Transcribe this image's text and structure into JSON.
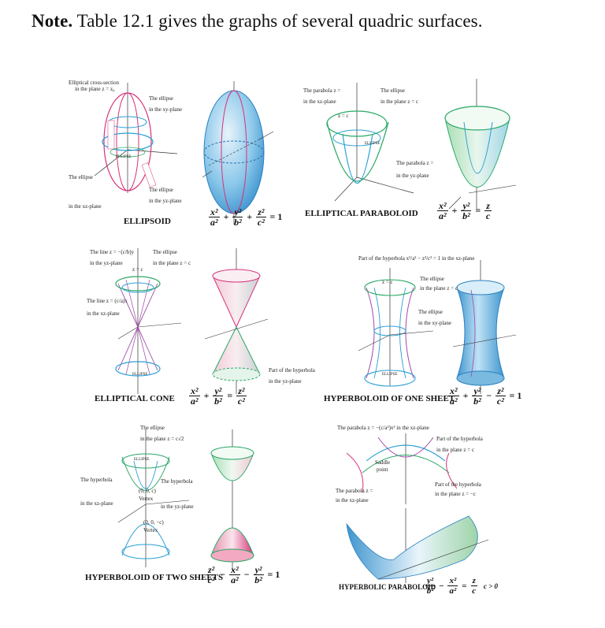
{
  "note": {
    "label": "Note.",
    "text": "Table 12.1 gives the graphs of several quadric surfaces."
  },
  "panels": {
    "ellipsoid": {
      "title": "ELLIPSOID",
      "lbl_cross": "Elliptical cross-section",
      "lbl_cross2": "in the plane z = z₀",
      "lbl_xy1": "The ellipse",
      "lbl_xy2": "in the xy-plane",
      "lbl_xz1": "The ellipse",
      "lbl_xz2": "in the xz-plane",
      "lbl_yz1": "The ellipse",
      "lbl_yz2": "in the yz-plane",
      "tag_ellipse": "ELLIPSE"
    },
    "paraboloid": {
      "title": "ELLIPTICAL PARABOLOID",
      "lbl_par1": "The parabola z =",
      "lbl_par2": "in the xz-plane",
      "lbl_ell1": "The ellipse",
      "lbl_ell2": "in the plane z = c",
      "lbl_par3": "The parabola z =",
      "lbl_par4": "in the yz-plane",
      "tag_zc": "z = c",
      "tag_ellipse": "ELLIPSE",
      "tag_parabola": "PARABOLA"
    },
    "cone": {
      "title": "ELLIPTICAL CONE",
      "lbl_line1": "The line z = −(c/b)y",
      "lbl_line2": "in the yz-plane",
      "lbl_ell1": "The ellipse",
      "lbl_ell2": "in the plane z = c",
      "lbl_line3": "The line z = (c/a)x",
      "lbl_line4": "in the xz-plane",
      "tag_zc": "z = c",
      "tag_ellipse": "ELLIPSE"
    },
    "hyp1": {
      "title": "HYPERBOLOID OF ONE SHEET",
      "lbl_top": "Part of the hyperbola x²/a² − z²/c² = 1 in the xz-plane",
      "lbl_ell1": "The ellipse",
      "lbl_ell2": "in the plane z = c",
      "lbl_ell3": "The ellipse",
      "lbl_ell4": "in the xy-plane",
      "lbl_bot1": "Part of the hyperbola",
      "lbl_bot2": "in the yz-plane",
      "tag_zc": "z = c",
      "tag_ellipse": "ELLIPSE",
      "tag_hyperbola": "HYPERBOLA"
    },
    "hyp2": {
      "title": "HYPERBOLOID OF TWO SHEETS",
      "lbl_ell1": "The ellipse",
      "lbl_ell2": "in the plane z = c√2",
      "lbl_hyp1": "The hyperbola",
      "lbl_hyp2": "in the xz-plane",
      "lbl_hyp3": "The hyperbola",
      "lbl_hyp4": "in the yz-plane",
      "lbl_v1": "(0, 0, c)",
      "lbl_v1b": "Vertex",
      "lbl_v2": "(0, 0, −c)",
      "lbl_v2b": "Vertex",
      "tag_ellipse": "ELLIPSE",
      "tag_hyperbola": "HYPERBOLA"
    },
    "hpar": {
      "title": "HYPERBOLIC PARABOLOID",
      "cond": "c > 0",
      "lbl_top": "The parabola z = −(c/a²)x² in the xz-plane",
      "lbl_right1": "Part of the hyperbola",
      "lbl_right2": "in the plane z = c",
      "lbl_saddle1": "Saddle",
      "lbl_saddle2": "point",
      "lbl_par1": "The parabola z =",
      "lbl_par2": "in the xz-plane",
      "lbl_rb1": "Part of the hyperbola",
      "lbl_rb2": "in the plane z = −c",
      "tag_hyperbola": "HYPERBOLA",
      "tag_parabola": "PARABOLA"
    }
  }
}
